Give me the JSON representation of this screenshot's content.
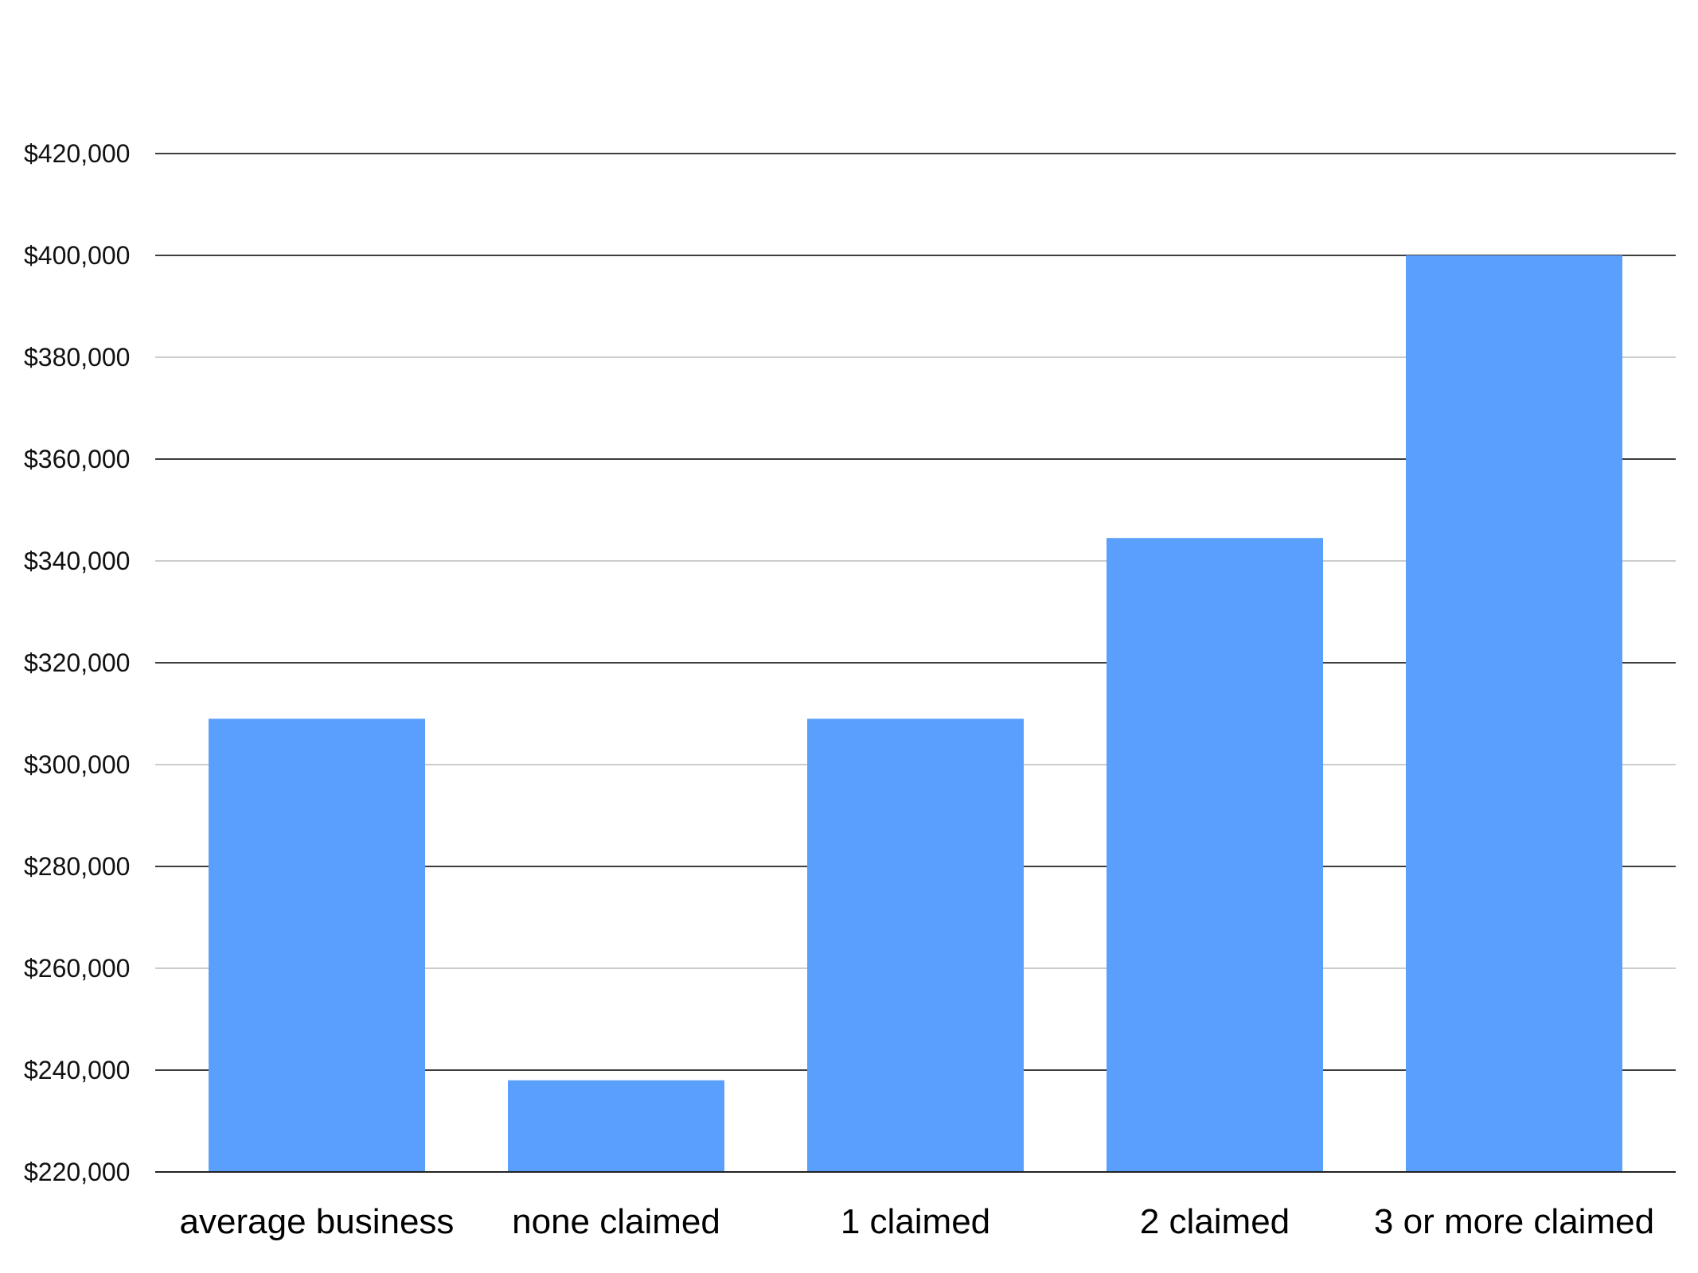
{
  "chart_data": {
    "type": "bar",
    "categories": [
      "average business",
      "none claimed",
      "1 claimed",
      "2 claimed",
      "3 or more claimed"
    ],
    "values": [
      309000,
      238000,
      309000,
      344500,
      400000
    ],
    "ylim": [
      220000,
      420000
    ],
    "yticks": [
      220000,
      240000,
      260000,
      280000,
      300000,
      320000,
      340000,
      360000,
      380000,
      400000,
      420000
    ],
    "ytick_labels": [
      "$220,000",
      "$240,000",
      "$260,000",
      "$280,000",
      "$300,000",
      "$320,000",
      "$340,000",
      "$360,000",
      "$380,000",
      "$400,000",
      "$420,000"
    ],
    "grid": true,
    "legend": "none",
    "colors": {
      "bar": "#5b9ffc",
      "major_grid": "#222222",
      "minor_grid": "#bbbbbb"
    }
  }
}
